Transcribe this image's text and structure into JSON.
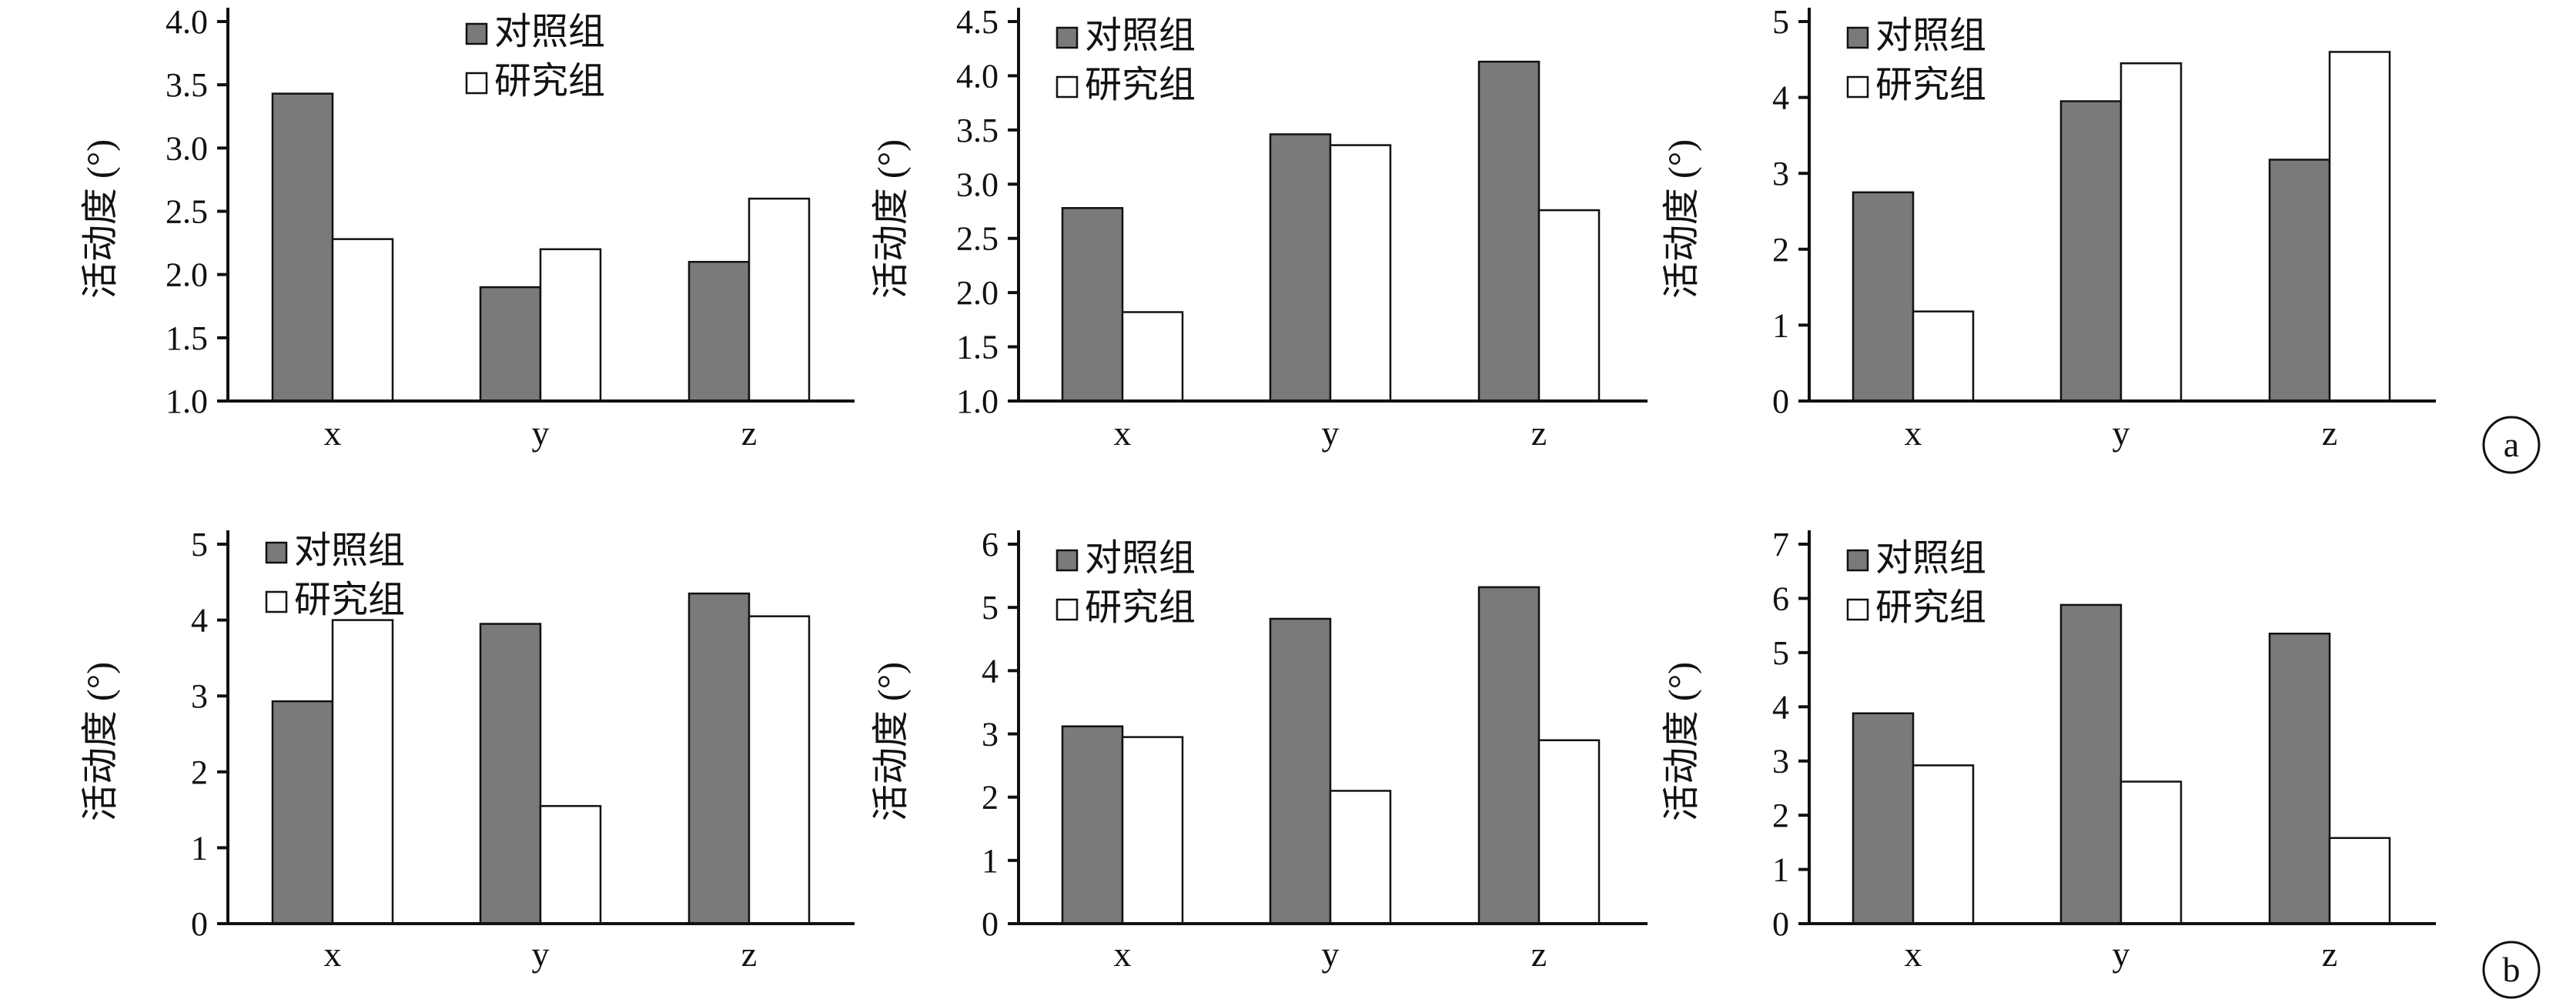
{
  "row_labels": [
    "a",
    "b"
  ],
  "colors": {
    "control": "#7a7a7a",
    "study": "#ffffff",
    "stroke": "#111111"
  },
  "chart_data": [
    {
      "type": "bar",
      "row": "a",
      "categories": [
        "x",
        "y",
        "z"
      ],
      "series": [
        {
          "name": "对照组",
          "values": [
            3.43,
            1.9,
            2.1
          ]
        },
        {
          "name": "研究组",
          "values": [
            2.28,
            2.2,
            2.6
          ]
        }
      ],
      "ylabel": "活动度 (°)",
      "ylim": [
        1.0,
        4.0
      ],
      "yticks": [
        "1.0",
        "1.5",
        "2.0",
        "2.5",
        "3.0",
        "3.5",
        "4.0"
      ],
      "legend": "top-center"
    },
    {
      "type": "bar",
      "row": "a",
      "categories": [
        "x",
        "y",
        "z"
      ],
      "series": [
        {
          "name": "对照组",
          "values": [
            2.78,
            3.46,
            4.13
          ]
        },
        {
          "name": "研究组",
          "values": [
            1.82,
            3.36,
            2.76
          ]
        }
      ],
      "ylabel": "活动度 (°)",
      "ylim": [
        1.0,
        4.5
      ],
      "yticks": [
        "1.0",
        "1.5",
        "2.0",
        "2.5",
        "3.0",
        "3.5",
        "4.0",
        "4.5"
      ],
      "legend": "top-left"
    },
    {
      "type": "bar",
      "row": "a",
      "categories": [
        "x",
        "y",
        "z"
      ],
      "series": [
        {
          "name": "对照组",
          "values": [
            2.75,
            3.95,
            3.18
          ]
        },
        {
          "name": "研究组",
          "values": [
            1.18,
            4.45,
            4.6
          ]
        }
      ],
      "ylabel": "活动度 (°)",
      "ylim": [
        0,
        5
      ],
      "yticks": [
        "0",
        "1",
        "2",
        "3",
        "4",
        "5"
      ],
      "legend": "top-left"
    },
    {
      "type": "bar",
      "row": "b",
      "categories": [
        "x",
        "y",
        "z"
      ],
      "series": [
        {
          "name": "对照组",
          "values": [
            2.93,
            3.95,
            4.35
          ]
        },
        {
          "name": "研究组",
          "values": [
            4.0,
            1.55,
            4.05
          ]
        }
      ],
      "ylabel": "活动度 (°)",
      "ylim": [
        0,
        5
      ],
      "yticks": [
        "0",
        "1",
        "2",
        "3",
        "4",
        "5"
      ],
      "legend": "top-left"
    },
    {
      "type": "bar",
      "row": "b",
      "categories": [
        "x",
        "y",
        "z"
      ],
      "series": [
        {
          "name": "对照组",
          "values": [
            3.12,
            4.82,
            5.32
          ]
        },
        {
          "name": "研究组",
          "values": [
            2.95,
            2.1,
            2.9
          ]
        }
      ],
      "ylabel": "活动度 (°)",
      "ylim": [
        0,
        6
      ],
      "yticks": [
        "0",
        "1",
        "2",
        "3",
        "4",
        "5",
        "6"
      ],
      "legend": "top-left"
    },
    {
      "type": "bar",
      "row": "b",
      "categories": [
        "x",
        "y",
        "z"
      ],
      "series": [
        {
          "name": "对照组",
          "values": [
            3.88,
            5.88,
            5.35
          ]
        },
        {
          "name": "研究组",
          "values": [
            2.92,
            2.62,
            1.58
          ]
        }
      ],
      "ylabel": "活动度 (°)",
      "ylim": [
        0,
        7
      ],
      "yticks": [
        "0",
        "1",
        "2",
        "3",
        "4",
        "5",
        "6",
        "7"
      ],
      "legend": "top-left"
    }
  ]
}
